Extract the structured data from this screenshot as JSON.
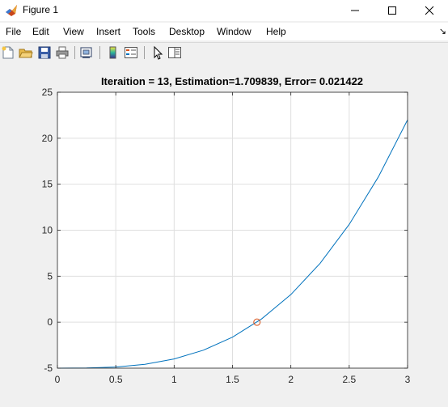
{
  "window": {
    "title": "Figure 1",
    "app_icon": "matlab-icon",
    "controls": [
      "minimize-icon",
      "maximize-icon",
      "close-icon"
    ]
  },
  "menu": {
    "items": [
      {
        "label": "File"
      },
      {
        "label": "Edit"
      },
      {
        "label": "View"
      },
      {
        "label": "Insert"
      },
      {
        "label": "Tools"
      },
      {
        "label": "Desktop"
      },
      {
        "label": "Window"
      },
      {
        "label": "Help"
      }
    ],
    "dock_glyph": "↘"
  },
  "toolbar": {
    "buttons": [
      "new-figure-icon",
      "open-file-icon",
      "save-icon",
      "print-icon",
      "link-plot-icon",
      "insert-colorbar-icon",
      "insert-legend-icon",
      "edit-plot-icon",
      "property-editor-icon"
    ]
  },
  "chart_data": {
    "type": "line",
    "title": "Iteraition = 13,  Estimation=1.709839,  Error= 0.021422",
    "xlim": [
      0,
      3
    ],
    "ylim": [
      -5,
      25
    ],
    "xticks": [
      0,
      0.5,
      1,
      1.5,
      2,
      2.5,
      3
    ],
    "xtick_labels": [
      "0",
      "0.5",
      "1",
      "1.5",
      "2",
      "2.5",
      "3"
    ],
    "yticks": [
      -5,
      0,
      5,
      10,
      15,
      20,
      25
    ],
    "ytick_labels": [
      "-5",
      "0",
      "5",
      "10",
      "15",
      "20",
      "25"
    ],
    "grid": true,
    "series": [
      {
        "color": "#0072bd",
        "x": [
          0,
          0.25,
          0.5,
          0.75,
          1,
          1.25,
          1.5,
          1.75,
          2,
          2.25,
          2.5,
          2.75,
          3
        ],
        "y": [
          -5,
          -4.98,
          -4.88,
          -4.58,
          -4.0,
          -3.05,
          -1.63,
          0.36,
          3.0,
          6.39,
          10.63,
          15.8,
          22.0
        ]
      }
    ],
    "marker": {
      "x": 1.7098,
      "y": 0.0,
      "shape": "circle",
      "color": "#d95319"
    }
  }
}
